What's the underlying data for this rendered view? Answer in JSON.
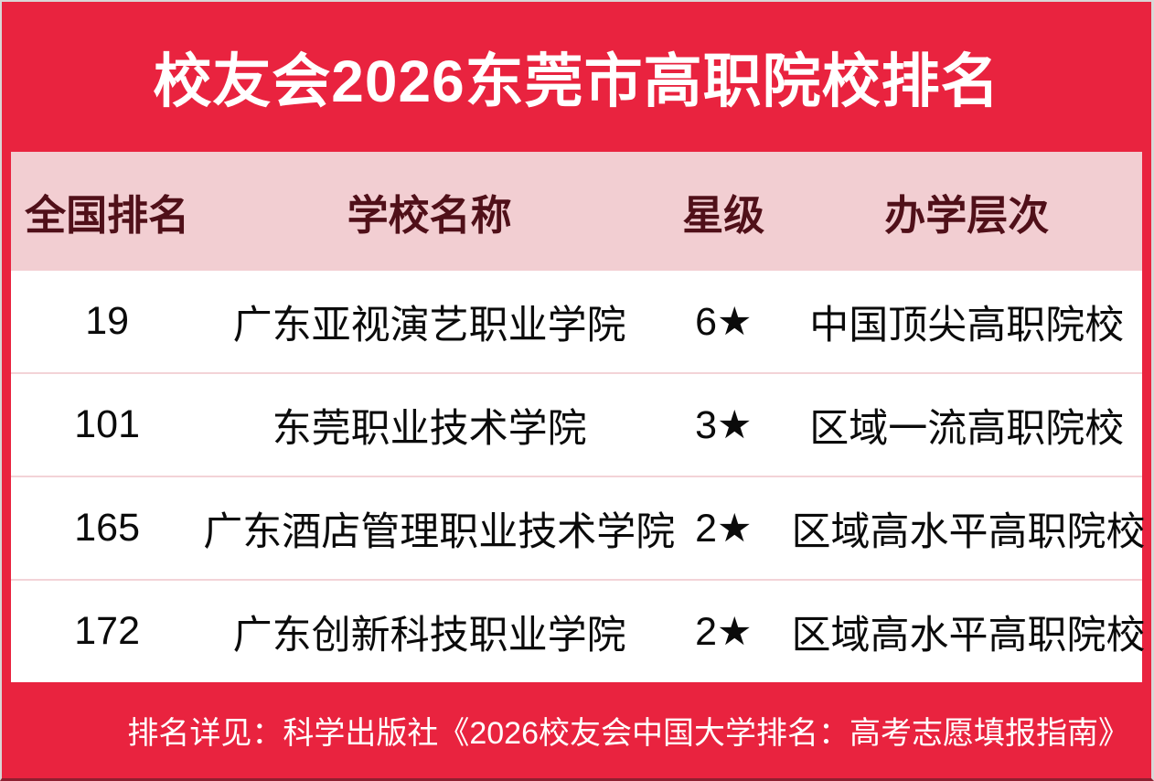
{
  "title": "校友会2026东莞市高职院校排名",
  "table": {
    "headers": [
      "全国排名",
      "学校名称",
      "星级",
      "办学层次"
    ],
    "rows": [
      {
        "rank": "19",
        "school": "广东亚视演艺职业学院",
        "stars": "6★",
        "level": "中国顶尖高职院校"
      },
      {
        "rank": "101",
        "school": "东莞职业技术学院",
        "stars": "3★",
        "level": "区域一流高职院校"
      },
      {
        "rank": "165",
        "school": "广东酒店管理职业技术学院",
        "stars": "2★",
        "level": "区域高水平高职院校"
      },
      {
        "rank": "172",
        "school": "广东创新科技职业学院",
        "stars": "2★",
        "level": "区域高水平高职院校"
      }
    ]
  },
  "footer": "排名详见：科学出版社《2026校友会中国大学排名：高考志愿填报指南》",
  "colors": {
    "background_red": "#E9233F",
    "header_pink": "#F2CED2",
    "header_text_maroon": "#501019",
    "body_text": "#0B0B0B",
    "title_text": "#FFFFFF",
    "row_separator": "#F3D3D7",
    "edge_light": "#D9D6D6",
    "edge_dark": "#8E1F30"
  }
}
